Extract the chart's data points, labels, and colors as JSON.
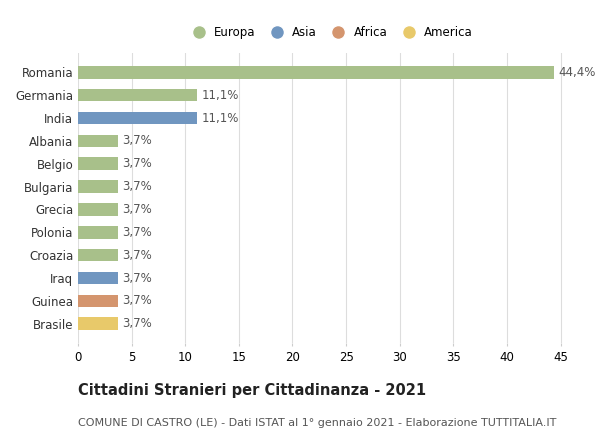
{
  "categories": [
    "Romania",
    "Germania",
    "India",
    "Albania",
    "Belgio",
    "Bulgaria",
    "Grecia",
    "Polonia",
    "Croazia",
    "Iraq",
    "Guinea",
    "Brasile"
  ],
  "values": [
    44.4,
    11.1,
    11.1,
    3.7,
    3.7,
    3.7,
    3.7,
    3.7,
    3.7,
    3.7,
    3.7,
    3.7
  ],
  "labels": [
    "44,4%",
    "11,1%",
    "11,1%",
    "3,7%",
    "3,7%",
    "3,7%",
    "3,7%",
    "3,7%",
    "3,7%",
    "3,7%",
    "3,7%",
    "3,7%"
  ],
  "colors": [
    "#a8c08a",
    "#a8c08a",
    "#7096c0",
    "#a8c08a",
    "#a8c08a",
    "#a8c08a",
    "#a8c08a",
    "#a8c08a",
    "#a8c08a",
    "#7096c0",
    "#d4956e",
    "#e8c96a"
  ],
  "continent_labels": [
    "Europa",
    "Asia",
    "Africa",
    "America"
  ],
  "continent_colors": [
    "#a8c08a",
    "#7096c0",
    "#d4956e",
    "#e8c96a"
  ],
  "title": "Cittadini Stranieri per Cittadinanza - 2021",
  "subtitle": "COMUNE DI CASTRO (LE) - Dati ISTAT al 1° gennaio 2021 - Elaborazione TUTTITALIA.IT",
  "xlim": [
    0,
    47
  ],
  "xticks": [
    0,
    5,
    10,
    15,
    20,
    25,
    30,
    35,
    40,
    45
  ],
  "background_color": "#ffffff",
  "grid_color": "#dddddd",
  "bar_height": 0.55,
  "label_fontsize": 8.5,
  "tick_fontsize": 8.5,
  "title_fontsize": 10.5,
  "subtitle_fontsize": 8.0
}
